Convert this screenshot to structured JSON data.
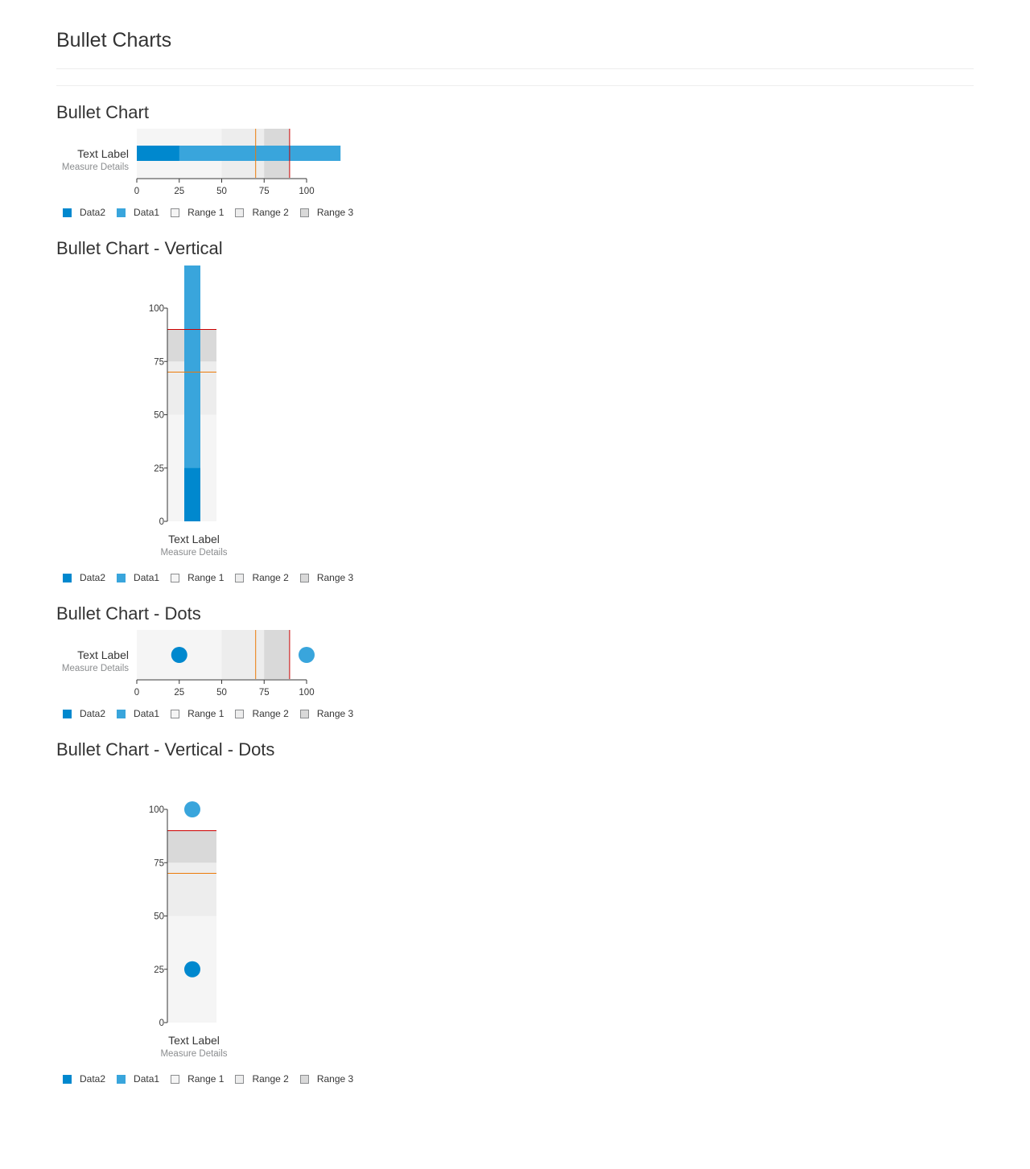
{
  "page": {
    "title": "Bullet Charts"
  },
  "colors": {
    "data2": "#0088ce",
    "data1": "#39a5dc",
    "range1": "#f5f5f5",
    "range2": "#ededed",
    "range3": "#d9d9d9",
    "threshold_warning": "#ec7a08",
    "threshold_error": "#cc0000",
    "axis": "#363636"
  },
  "legend": [
    "Data2",
    "Data1",
    "Range 1",
    "Range 2",
    "Range 3"
  ],
  "chart_data": [
    {
      "type": "bullet",
      "orientation": "horizontal",
      "marker": "bar",
      "title": "Bullet Chart",
      "label": "Text Label",
      "sublabel": "Measure Details",
      "ranges": [
        {
          "name": "Range 1",
          "value": 50
        },
        {
          "name": "Range 2",
          "value": 75
        },
        {
          "name": "Range 3",
          "value": 90
        }
      ],
      "measures": [
        {
          "name": "Data1",
          "value": 120
        },
        {
          "name": "Data2",
          "value": 25
        }
      ],
      "thresholds": [
        70,
        90
      ],
      "ticks": [
        0,
        25,
        50,
        75,
        100
      ]
    },
    {
      "type": "bullet",
      "orientation": "vertical",
      "marker": "bar",
      "title": "Bullet Chart - Vertical",
      "label": "Text Label",
      "sublabel": "Measure Details",
      "ranges": [
        {
          "name": "Range 1",
          "value": 50
        },
        {
          "name": "Range 2",
          "value": 75
        },
        {
          "name": "Range 3",
          "value": 90
        }
      ],
      "measures": [
        {
          "name": "Data1",
          "value": 120
        },
        {
          "name": "Data2",
          "value": 25
        }
      ],
      "thresholds": [
        70,
        90
      ],
      "ticks": [
        0,
        25,
        50,
        75,
        100
      ]
    },
    {
      "type": "bullet",
      "orientation": "horizontal",
      "marker": "dot",
      "title": "Bullet Chart - Dots",
      "label": "Text Label",
      "sublabel": "Measure Details",
      "ranges": [
        {
          "name": "Range 1",
          "value": 50
        },
        {
          "name": "Range 2",
          "value": 75
        },
        {
          "name": "Range 3",
          "value": 90
        }
      ],
      "measures": [
        {
          "name": "Data1",
          "value": 100
        },
        {
          "name": "Data2",
          "value": 25
        }
      ],
      "thresholds": [
        70,
        90
      ],
      "ticks": [
        0,
        25,
        50,
        75,
        100
      ]
    },
    {
      "type": "bullet",
      "orientation": "vertical",
      "marker": "dot",
      "title": "Bullet Chart - Vertical - Dots",
      "label": "Text Label",
      "sublabel": "Measure Details",
      "ranges": [
        {
          "name": "Range 1",
          "value": 50
        },
        {
          "name": "Range 2",
          "value": 75
        },
        {
          "name": "Range 3",
          "value": 90
        }
      ],
      "measures": [
        {
          "name": "Data1",
          "value": 100
        },
        {
          "name": "Data2",
          "value": 25
        }
      ],
      "thresholds": [
        70,
        90
      ],
      "ticks": [
        0,
        25,
        50,
        75,
        100
      ]
    }
  ]
}
